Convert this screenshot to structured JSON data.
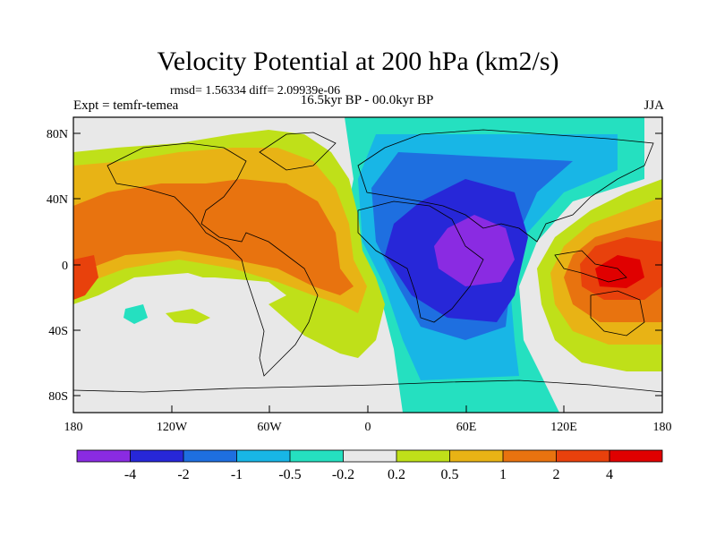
{
  "title": "Velocity Potential at 200 hPa (km2/s)",
  "stats": "rmsd= 1.56334 diff= 2.09939e-06",
  "left_label": "Expt = temfr-temea",
  "center_label": "16.5kyr BP - 00.0kyr BP",
  "right_label": "JJA",
  "lat_ticks": [
    "80N",
    "40N",
    "0",
    "40S",
    "80S"
  ],
  "lon_ticks": [
    "180",
    "120W",
    "60W",
    "0",
    "60E",
    "120E",
    "180"
  ],
  "colorbar": {
    "labels": [
      "-4",
      "-2",
      "-1",
      "-0.5",
      "-0.2",
      "0.2",
      "0.5",
      "1",
      "2",
      "4"
    ],
    "colors": [
      "#8a2be2",
      "#2727d8",
      "#1e6fe0",
      "#18b6e6",
      "#25e0c0",
      "#e8e8e8",
      "#bfe019",
      "#e8b315",
      "#e8730f",
      "#e8410c",
      "#e00000"
    ]
  }
}
